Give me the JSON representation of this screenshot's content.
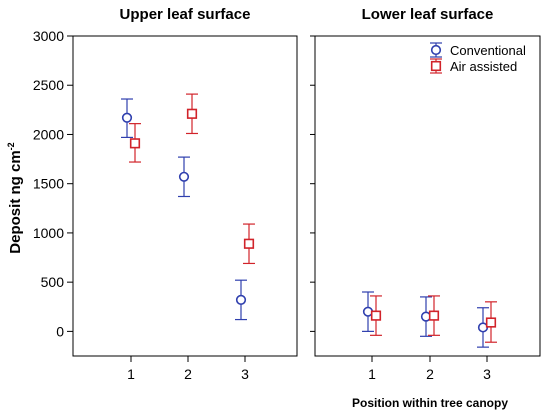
{
  "chart_data": {
    "type": "scatter",
    "ylabel_main": "Deposit ng cm",
    "ylabel_sup": "-2",
    "xlabel": "Position within tree canopy",
    "ylim": [
      -250,
      3000
    ],
    "yticks": [
      "0",
      "500",
      "1000",
      "1500",
      "2000",
      "2500",
      "3000"
    ],
    "ytick_values": [
      0,
      500,
      1000,
      1500,
      2000,
      2500,
      3000
    ],
    "categories": [
      "1",
      "2",
      "3"
    ],
    "legend_position": "top-right",
    "colors": {
      "conventional": "#2f3fae",
      "air_assisted": "#d1232a",
      "frame": "#000000"
    },
    "legend": {
      "conventional": "Conventional",
      "air_assisted": "Air assisted"
    },
    "panels": [
      {
        "title": "Upper leaf surface",
        "series": [
          {
            "key": "conventional",
            "marker": "circle",
            "values": [
              2170,
              1570,
              320
            ],
            "lower": [
              1970,
              1370,
              120
            ],
            "upper": [
              2360,
              1770,
              520
            ]
          },
          {
            "key": "air_assisted",
            "marker": "square",
            "values": [
              1910,
              2210,
              890
            ],
            "lower": [
              1720,
              2010,
              690
            ],
            "upper": [
              2110,
              2410,
              1090
            ]
          }
        ]
      },
      {
        "title": "Lower leaf surface",
        "series": [
          {
            "key": "conventional",
            "marker": "circle",
            "values": [
              200,
              150,
              40
            ],
            "lower": [
              0,
              -50,
              -160
            ],
            "upper": [
              400,
              350,
              240
            ]
          },
          {
            "key": "air_assisted",
            "marker": "square",
            "values": [
              160,
              160,
              90
            ],
            "lower": [
              -40,
              -40,
              -110
            ],
            "upper": [
              360,
              360,
              300
            ]
          }
        ]
      }
    ]
  }
}
